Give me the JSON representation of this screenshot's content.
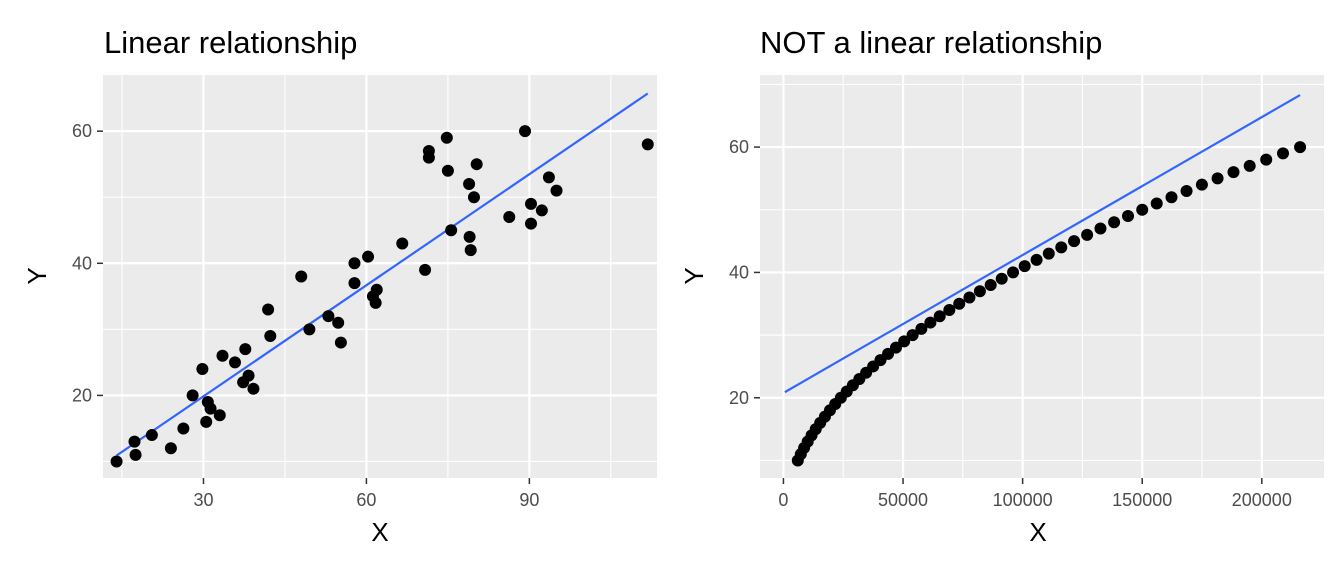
{
  "colors": {
    "points": "#000000",
    "fit_line": "#3366ff",
    "panel_background": "#ebebeb",
    "grid": "#ffffff"
  },
  "chart_data": [
    {
      "type": "scatter",
      "title": "Linear relationship",
      "xlabel": "X",
      "ylabel": "Y",
      "xlim": [
        11.5,
        113.5
      ],
      "ylim": [
        7.5,
        68.5
      ],
      "x_ticks": [
        30,
        60,
        90
      ],
      "y_ticks": [
        20,
        40,
        60
      ],
      "x_minor_ticks": [
        15,
        45,
        75,
        105
      ],
      "y_minor_ticks": [
        10,
        30,
        50
      ],
      "grid": true,
      "points": [
        {
          "x": 14,
          "y": 10
        },
        {
          "x": 17.3,
          "y": 13
        },
        {
          "x": 17.5,
          "y": 11
        },
        {
          "x": 20.5,
          "y": 14
        },
        {
          "x": 24,
          "y": 12
        },
        {
          "x": 26.3,
          "y": 15
        },
        {
          "x": 28,
          "y": 20
        },
        {
          "x": 29.8,
          "y": 24
        },
        {
          "x": 30.5,
          "y": 16
        },
        {
          "x": 30.8,
          "y": 19
        },
        {
          "x": 31.3,
          "y": 18
        },
        {
          "x": 33,
          "y": 17
        },
        {
          "x": 33.5,
          "y": 26
        },
        {
          "x": 35.8,
          "y": 25
        },
        {
          "x": 37.3,
          "y": 22
        },
        {
          "x": 37.7,
          "y": 27
        },
        {
          "x": 38.3,
          "y": 23
        },
        {
          "x": 39.2,
          "y": 21
        },
        {
          "x": 41.9,
          "y": 33
        },
        {
          "x": 42.3,
          "y": 29
        },
        {
          "x": 48,
          "y": 38
        },
        {
          "x": 49.5,
          "y": 30
        },
        {
          "x": 53,
          "y": 32
        },
        {
          "x": 54.8,
          "y": 31
        },
        {
          "x": 55.3,
          "y": 28
        },
        {
          "x": 57.8,
          "y": 37
        },
        {
          "x": 57.8,
          "y": 40
        },
        {
          "x": 60.3,
          "y": 41
        },
        {
          "x": 61.2,
          "y": 35
        },
        {
          "x": 61.7,
          "y": 34
        },
        {
          "x": 61.9,
          "y": 36
        },
        {
          "x": 66.6,
          "y": 43
        },
        {
          "x": 70.8,
          "y": 39
        },
        {
          "x": 71.5,
          "y": 57
        },
        {
          "x": 71.5,
          "y": 56
        },
        {
          "x": 74.8,
          "y": 59
        },
        {
          "x": 75,
          "y": 54
        },
        {
          "x": 75.6,
          "y": 45
        },
        {
          "x": 78.9,
          "y": 52
        },
        {
          "x": 79,
          "y": 44
        },
        {
          "x": 79.2,
          "y": 42
        },
        {
          "x": 79.8,
          "y": 50
        },
        {
          "x": 80.3,
          "y": 55
        },
        {
          "x": 86.3,
          "y": 47
        },
        {
          "x": 89.2,
          "y": 60
        },
        {
          "x": 90.3,
          "y": 49
        },
        {
          "x": 90.3,
          "y": 46
        },
        {
          "x": 92.3,
          "y": 48
        },
        {
          "x": 93.6,
          "y": 53
        },
        {
          "x": 95,
          "y": 51
        },
        {
          "x": 111.8,
          "y": 58
        }
      ],
      "fit_line": {
        "x": [
          14,
          111.8
        ],
        "y": [
          10.9,
          65.7
        ]
      }
    },
    {
      "type": "scatter",
      "title": "NOT a linear relationship",
      "xlabel": "X",
      "ylabel": "Y",
      "xlim": [
        -9800,
        226000
      ],
      "ylim": [
        7.2,
        71.5
      ],
      "x_ticks": [
        0,
        50000,
        100000,
        150000,
        200000
      ],
      "y_ticks": [
        20,
        40,
        60
      ],
      "x_minor_ticks": [
        25000,
        75000,
        125000,
        175000
      ],
      "y_minor_ticks": [
        10,
        30,
        50,
        70
      ],
      "grid": true,
      "points_rule": "y = 10..60 step 1, x = 60 * y^2",
      "y_start": 10,
      "y_end": 60,
      "x_factor": 60,
      "fit_line": {
        "x": [
          600,
          216000
        ],
        "y": [
          20.9,
          68.3
        ]
      }
    }
  ]
}
